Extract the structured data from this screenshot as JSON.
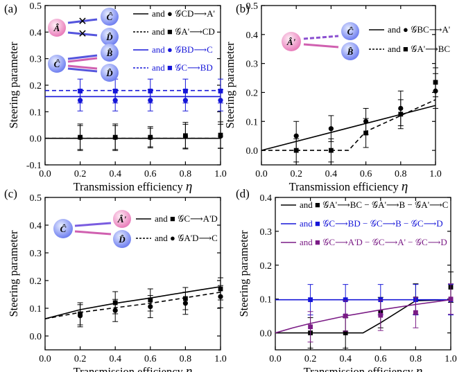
{
  "chart_data": [
    {
      "panel_label": "(a)",
      "type": "line",
      "xlabel": "Transmission efficiency",
      "xlabel_symbol": "η",
      "ylabel": "Steering parameter",
      "xlim": [
        0.0,
        1.0
      ],
      "ylim": [
        -0.1,
        0.5
      ],
      "xticks": [
        "0.0",
        "0.2",
        "0.4",
        "0.6",
        "0.8",
        "1.0"
      ],
      "yticks": [
        "-0.1",
        "0.0",
        "0.1",
        "0.2",
        "0.3",
        "0.4",
        "0.5"
      ],
      "inset_nodes": [
        "Â",
        "Ĉ",
        "D̂",
        "Ĉ",
        "B̂",
        "D̂"
      ],
      "series": [
        {
          "legend": "and ● 𝒢CD⟶A'",
          "color": "#000000",
          "line": "solid",
          "marker": "circle",
          "theory": [
            [
              0,
              0
            ],
            [
              1,
              0
            ]
          ],
          "exp_x": [
            0.2,
            0.4,
            0.6,
            0.8,
            1.0
          ],
          "exp_y": [
            0.003,
            0.003,
            0.003,
            0.008,
            0.008
          ],
          "err": [
            0.045,
            0.045,
            0.035,
            0.045,
            0.045
          ]
        },
        {
          "legend": "and ■ 𝒢A'⟶CD",
          "color": "#000000",
          "line": "dashed",
          "marker": "square",
          "theory": [
            [
              0,
              0
            ],
            [
              1,
              0
            ]
          ],
          "exp_x": [
            0.2,
            0.4,
            0.6,
            0.8,
            1.0
          ],
          "exp_y": [
            0.004,
            0.004,
            0.004,
            0.01,
            0.012
          ],
          "err": [
            0.05,
            0.05,
            0.04,
            0.05,
            0.05
          ]
        },
        {
          "legend": "and ● 𝒢BD⟶C",
          "color": "#1515d8",
          "line": "solid",
          "marker": "circle",
          "theory": [
            [
              0,
              0.157
            ],
            [
              1,
              0.157
            ]
          ],
          "exp_x": [
            0.2,
            0.4,
            0.6,
            0.8,
            1.0
          ],
          "exp_y": [
            0.143,
            0.143,
            0.143,
            0.143,
            0.143
          ],
          "err": [
            0.04,
            0.04,
            0.04,
            0.04,
            0.04
          ]
        },
        {
          "legend": "and ■ 𝒢C⟶BD",
          "color": "#1515d8",
          "line": "dashed",
          "marker": "square",
          "theory": [
            [
              0,
              0.18
            ],
            [
              1,
              0.18
            ]
          ],
          "exp_x": [
            0.2,
            0.4,
            0.6,
            0.8,
            1.0
          ],
          "exp_y": [
            0.178,
            0.178,
            0.178,
            0.178,
            0.178
          ],
          "err": [
            0.045,
            0.045,
            0.045,
            0.045,
            0.045
          ]
        }
      ]
    },
    {
      "panel_label": "(b)",
      "type": "line",
      "xlabel": "Transmission efficiency",
      "xlabel_symbol": "η",
      "ylabel": "Steering parameter",
      "xlim": [
        0.0,
        1.0
      ],
      "ylim": [
        -0.05,
        0.5
      ],
      "xticks": [
        "0.0",
        "0.2",
        "0.4",
        "0.6",
        "0.8",
        "1.0"
      ],
      "yticks": [
        "0.0",
        "0.1",
        "0.2",
        "0.3",
        "0.4",
        "0.5"
      ],
      "inset_nodes": [
        "Â'",
        "Ĉ",
        "B̂"
      ],
      "series": [
        {
          "legend": "and ● 𝒢BC⟶A'",
          "color": "#000000",
          "line": "solid",
          "marker": "circle",
          "theory": [
            [
              0,
              0.0
            ],
            [
              1,
              0.155
            ]
          ],
          "exp_x": [
            0.2,
            0.4,
            0.6,
            0.8,
            1.0
          ],
          "exp_y": [
            0.05,
            0.075,
            0.1,
            0.145,
            0.205
          ],
          "err": [
            0.05,
            0.045,
            0.045,
            0.06,
            0.06
          ]
        },
        {
          "legend": "and ■ 𝒢A'⟶BC",
          "color": "#000000",
          "line": "dashed",
          "marker": "square",
          "theory": [
            [
              0,
              0
            ],
            [
              0.5,
              0
            ],
            [
              0.6,
              0.065
            ],
            [
              0.8,
              0.12
            ],
            [
              1,
              0.175
            ]
          ],
          "exp_x": [
            0.2,
            0.4,
            0.6,
            0.8,
            1.0
          ],
          "exp_y": [
            0.0,
            0.0,
            0.06,
            0.125,
            0.235
          ],
          "err": [
            0.04,
            0.04,
            0.05,
            0.05,
            0.05
          ]
        }
      ]
    },
    {
      "panel_label": "(c)",
      "type": "line",
      "xlabel": "Transmission efficiency",
      "xlabel_symbol": "η",
      "ylabel": "Steering parameter",
      "xlim": [
        0.0,
        1.0
      ],
      "ylim": [
        -0.05,
        0.5
      ],
      "xticks": [
        "0.0",
        "0.2",
        "0.4",
        "0.6",
        "0.8",
        "1.0"
      ],
      "yticks": [
        "0.0",
        "0.1",
        "0.2",
        "0.3",
        "0.4",
        "0.5"
      ],
      "inset_nodes": [
        "Ĉ",
        "Â'",
        "D̂"
      ],
      "series": [
        {
          "legend": "and ■ 𝒢C⟶A'D",
          "color": "#000000",
          "line": "solid",
          "marker": "square",
          "theory": [
            [
              0,
              0.062
            ],
            [
              0.2,
              0.095
            ],
            [
              0.4,
              0.118
            ],
            [
              0.6,
              0.137
            ],
            [
              0.8,
              0.158
            ],
            [
              1,
              0.178
            ]
          ],
          "exp_x": [
            0.2,
            0.4,
            0.6,
            0.8,
            1.0
          ],
          "exp_y": [
            0.08,
            0.12,
            0.13,
            0.135,
            0.17
          ],
          "err": [
            0.04,
            0.04,
            0.04,
            0.04,
            0.04
          ]
        },
        {
          "legend": "and ● 𝒢A'D⟶C",
          "color": "#000000",
          "line": "dashed",
          "marker": "circle",
          "theory": [
            [
              0,
              0.062
            ],
            [
              0.2,
              0.085
            ],
            [
              0.4,
              0.102
            ],
            [
              0.6,
              0.118
            ],
            [
              0.8,
              0.138
            ],
            [
              1,
              0.158
            ]
          ],
          "exp_x": [
            0.2,
            0.4,
            0.6,
            0.8,
            1.0
          ],
          "exp_y": [
            0.073,
            0.092,
            0.106,
            0.118,
            0.142
          ],
          "err": [
            0.04,
            0.04,
            0.04,
            0.04,
            0.04
          ]
        }
      ]
    },
    {
      "panel_label": "(d)",
      "type": "line",
      "xlabel": "Transmission efficiency",
      "xlabel_symbol": "η",
      "ylabel": "Steering parameter",
      "xlim": [
        0.0,
        1.0
      ],
      "ylim": [
        -0.05,
        0.4
      ],
      "xticks": [
        "0.0",
        "0.2",
        "0.4",
        "0.6",
        "0.8",
        "1.0"
      ],
      "yticks": [
        "0.0",
        "0.1",
        "0.2",
        "0.3",
        "0.4"
      ],
      "series": [
        {
          "legend": "and ■ 𝒢A'⟶BC − 𝒢A'⟶B − 𝒢A'⟶C",
          "color": "#000000",
          "line": "solid",
          "marker": "square",
          "theory": [
            [
              0,
              0
            ],
            [
              0.5,
              0
            ],
            [
              0.6,
              0.03
            ],
            [
              0.8,
              0.095
            ],
            [
              1,
              0.098
            ]
          ],
          "exp_x": [
            0.2,
            0.4,
            0.6,
            0.8,
            1.0
          ],
          "exp_y": [
            0.0,
            0.0,
            0.06,
            0.1,
            0.135
          ],
          "err": [
            0.045,
            0.045,
            0.045,
            0.045,
            0.045
          ]
        },
        {
          "legend": "and ■ 𝒢C⟶BD − 𝒢C⟶B − 𝒢C⟶D",
          "color": "#1515d8",
          "line": "solid",
          "marker": "square",
          "theory": [
            [
              0,
              0.098
            ],
            [
              1,
              0.098
            ]
          ],
          "exp_x": [
            0.2,
            0.4,
            0.6,
            0.8,
            1.0
          ],
          "exp_y": [
            0.098,
            0.098,
            0.098,
            0.098,
            0.098
          ],
          "err": [
            0.045,
            0.045,
            0.045,
            0.045,
            0.045
          ]
        },
        {
          "legend": "and ■ 𝒢C⟶A'D − 𝒢C⟶A' − 𝒢C⟶D",
          "color": "#7a1b85",
          "line": "solid",
          "marker": "square",
          "theory": [
            [
              0,
              0.0
            ],
            [
              0.1,
              0.015
            ],
            [
              0.2,
              0.028
            ],
            [
              0.4,
              0.05
            ],
            [
              0.6,
              0.068
            ],
            [
              0.8,
              0.084
            ],
            [
              1,
              0.098
            ]
          ],
          "exp_x": [
            0.2,
            0.4,
            0.6,
            0.8,
            1.0
          ],
          "exp_y": [
            0.018,
            0.05,
            0.052,
            0.06,
            0.1
          ],
          "err": [
            0.045,
            0.045,
            0.045,
            0.045,
            0.045
          ]
        }
      ]
    }
  ]
}
